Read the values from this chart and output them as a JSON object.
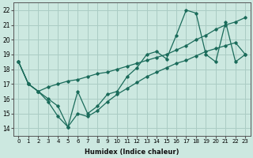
{
  "xlabel": "Humidex (Indice chaleur)",
  "xlim": [
    -0.5,
    23.5
  ],
  "ylim": [
    13.5,
    22.5
  ],
  "xticks": [
    0,
    1,
    2,
    3,
    4,
    5,
    6,
    7,
    8,
    9,
    10,
    11,
    12,
    13,
    14,
    15,
    16,
    17,
    18,
    19,
    20,
    21,
    22,
    23
  ],
  "yticks": [
    14,
    15,
    16,
    17,
    18,
    19,
    20,
    21,
    22
  ],
  "bg_color": "#cce8e0",
  "grid_color": "#aaccC4",
  "line_color": "#1a6b5a",
  "line1_x": [
    0,
    1,
    2,
    3,
    4,
    5,
    6,
    7,
    8,
    9,
    10,
    11,
    12,
    13,
    14,
    15,
    16,
    17,
    18,
    19,
    20,
    21,
    22,
    23
  ],
  "line1_y": [
    18.5,
    17.0,
    16.5,
    15.8,
    14.8,
    14.1,
    16.5,
    15.0,
    15.5,
    16.3,
    16.5,
    17.5,
    18.1,
    19.0,
    19.2,
    18.7,
    20.3,
    22.0,
    21.8,
    19.0,
    18.5,
    21.2,
    18.5,
    19.0
  ],
  "line2_x": [
    0,
    1,
    2,
    3,
    4,
    5,
    6,
    7,
    8,
    9,
    10,
    11,
    12,
    13,
    14,
    15,
    16,
    17,
    18,
    19,
    20,
    21,
    22,
    23
  ],
  "line2_y": [
    18.5,
    17.0,
    16.5,
    16.8,
    17.0,
    17.2,
    17.3,
    17.5,
    17.7,
    17.8,
    18.0,
    18.2,
    18.4,
    18.6,
    18.8,
    19.0,
    19.3,
    19.6,
    20.0,
    20.3,
    20.7,
    21.0,
    21.2,
    21.5
  ],
  "line3_x": [
    0,
    1,
    2,
    3,
    4,
    5,
    6,
    7,
    8,
    9,
    10,
    11,
    12,
    13,
    14,
    15,
    16,
    17,
    18,
    19,
    20,
    21,
    22,
    23
  ],
  "line3_y": [
    18.5,
    17.0,
    16.5,
    16.0,
    15.5,
    14.1,
    15.0,
    14.8,
    15.2,
    15.8,
    16.3,
    16.7,
    17.1,
    17.5,
    17.8,
    18.1,
    18.4,
    18.6,
    18.9,
    19.2,
    19.4,
    19.6,
    19.8,
    19.0
  ]
}
